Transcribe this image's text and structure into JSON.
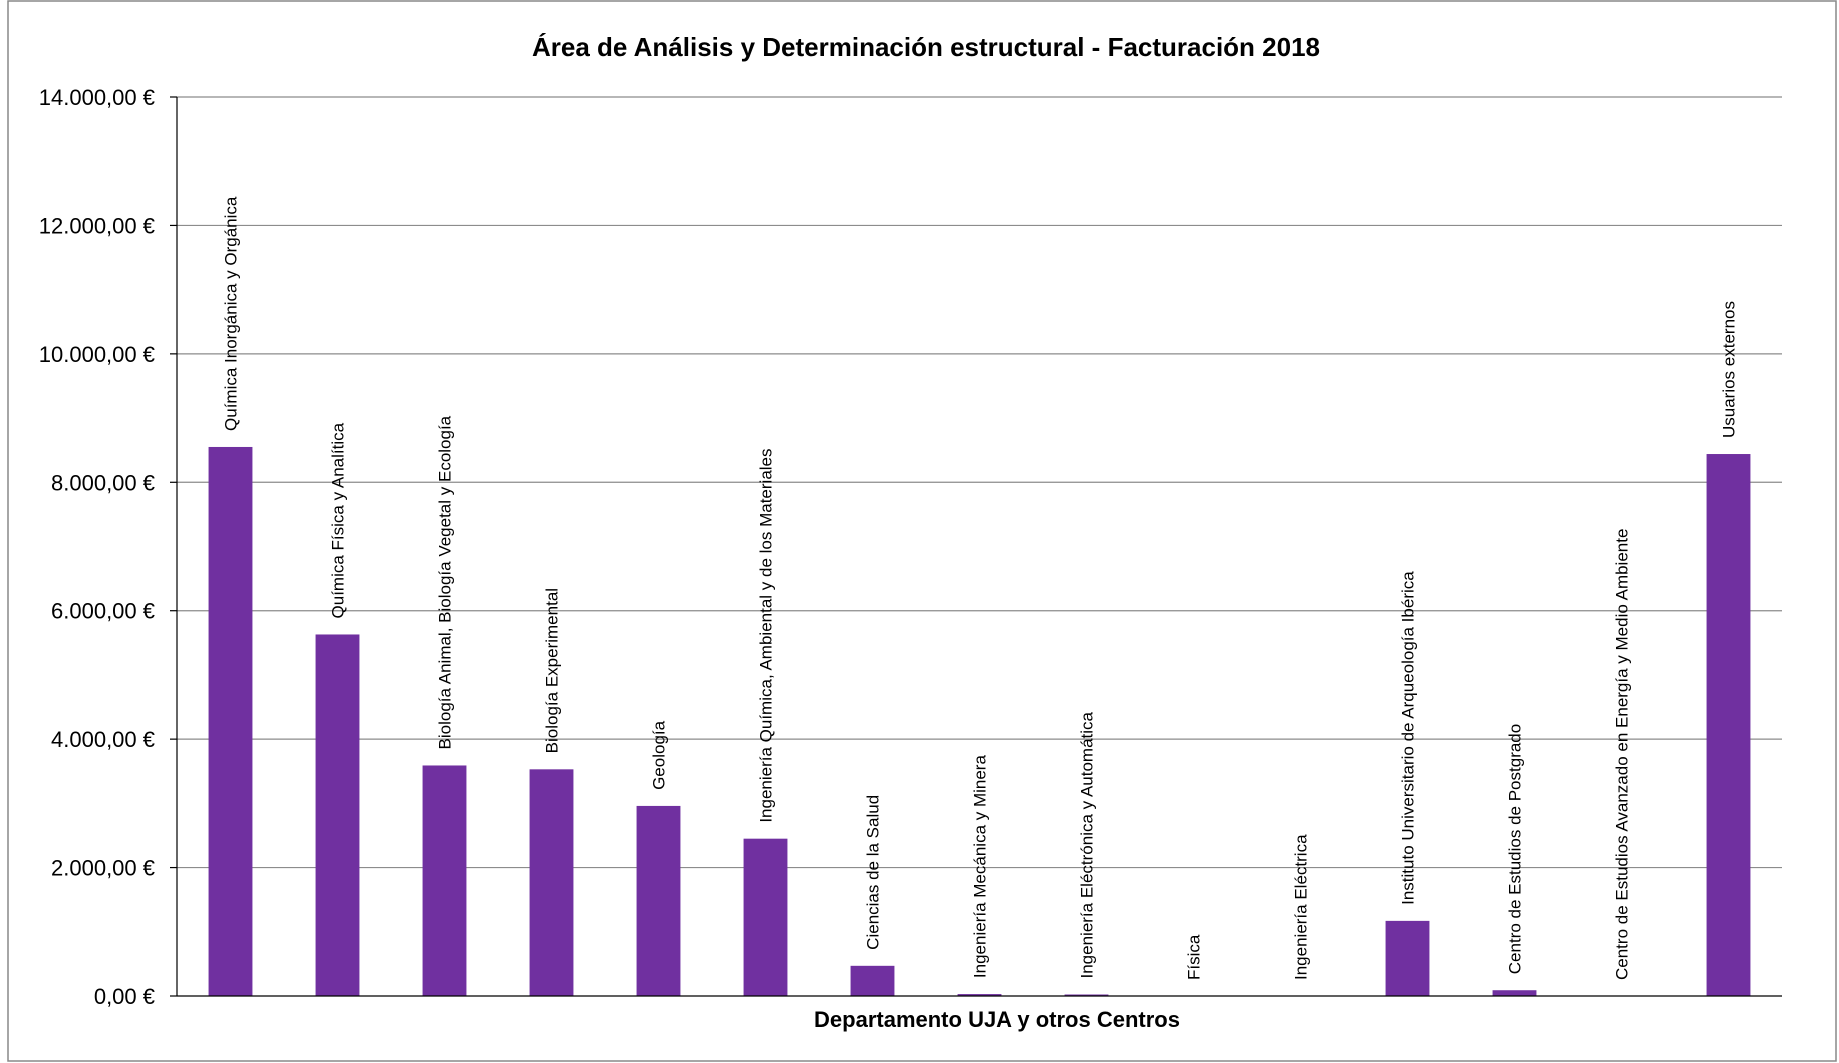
{
  "chart_data": {
    "type": "bar",
    "title": "Área de Análisis y Determinación estructural  - Facturación 2018",
    "xlabel": "Departamento UJA y otros Centros",
    "ylabel": "",
    "ylim": [
      0,
      14000
    ],
    "yticks": [
      0,
      2000,
      4000,
      6000,
      8000,
      10000,
      12000,
      14000
    ],
    "ytick_labels": [
      "0,00 €",
      "2.000,00 €",
      "4.000,00 €",
      "6.000,00 €",
      "8.000,00 €",
      "10.000,00 €",
      "12.000,00 €",
      "14.000,00 €"
    ],
    "grid": true,
    "bar_color": "#7030A0",
    "categories": [
      "Química Inorgánica y Orgánica",
      "Química Física y Analítica",
      "Biología Animal, Biología Vegetal y Ecología",
      "Biología Experimental",
      "Geología",
      "Ingeniería Química, Ambiental y de los Materiales",
      "Ciencias de la Salud",
      "Ingeniería Mecánica y Minera",
      "Ingeniería Eléctrónica y Automática",
      "Física",
      "Ingeniería Eléctrica",
      "Instituto Universitario de Arqueología Ibérica",
      "Centro de Estudios de Postgrado",
      "Centro de Estudios Avanzado en Energía y Medio Ambiente",
      "Usuarios externos"
    ],
    "values": [
      8550,
      5630,
      3590,
      3530,
      2960,
      2450,
      470,
      30,
      15,
      0,
      0,
      1170,
      90,
      0,
      8440
    ]
  }
}
